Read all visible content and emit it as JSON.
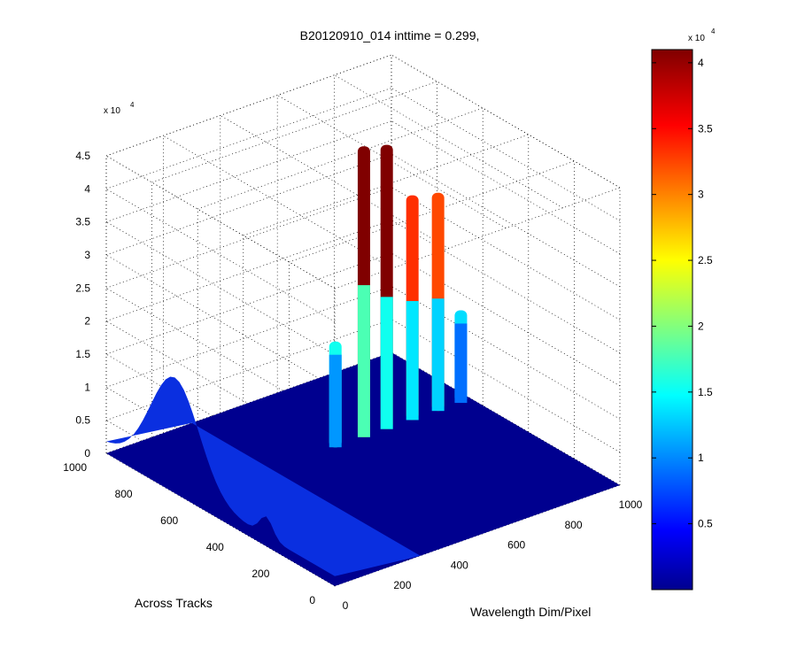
{
  "chart_data": {
    "type": "surface3d",
    "title": "B20120910_014 inttime = 0.299,",
    "xlabel": "Wavelength Dim/Pixel",
    "ylabel": "Across Tracks",
    "zlabel": "",
    "xlim": [
      0,
      1000
    ],
    "ylim": [
      0,
      1000
    ],
    "zlim": [
      0,
      45000
    ],
    "x_ticks": [
      "0",
      "200",
      "400",
      "600",
      "800",
      "1000"
    ],
    "y_ticks": [
      "0",
      "200",
      "400",
      "600",
      "800",
      "1000"
    ],
    "z_ticks": [
      "0",
      "0.5",
      "1",
      "1.5",
      "2",
      "2.5",
      "3",
      "3.5",
      "4",
      "4.5"
    ],
    "z_multiplier": "x 10",
    "z_exponent": "4",
    "grid": true,
    "colormap": "jet",
    "colorbar": {
      "range": [
        0,
        41000
      ],
      "ticks": [
        "0.5",
        "1",
        "1.5",
        "2",
        "2.5",
        "3",
        "3.5",
        "4"
      ],
      "multiplier": "x 10",
      "exponent": "4"
    },
    "background_hump": {
      "center_y": 700,
      "peak": 16000
    },
    "peaks": [
      {
        "x": 620,
        "peak": 44000,
        "base": 23000
      },
      {
        "x": 700,
        "peak": 43000,
        "base": 20000
      },
      {
        "x": 790,
        "peak": 34000,
        "base": 18000
      },
      {
        "x": 880,
        "peak": 33000,
        "base": 17000
      },
      {
        "x": 960,
        "peak": 14000,
        "base": 12000
      },
      {
        "x": 520,
        "peak": 16000,
        "base": 14000
      }
    ]
  }
}
